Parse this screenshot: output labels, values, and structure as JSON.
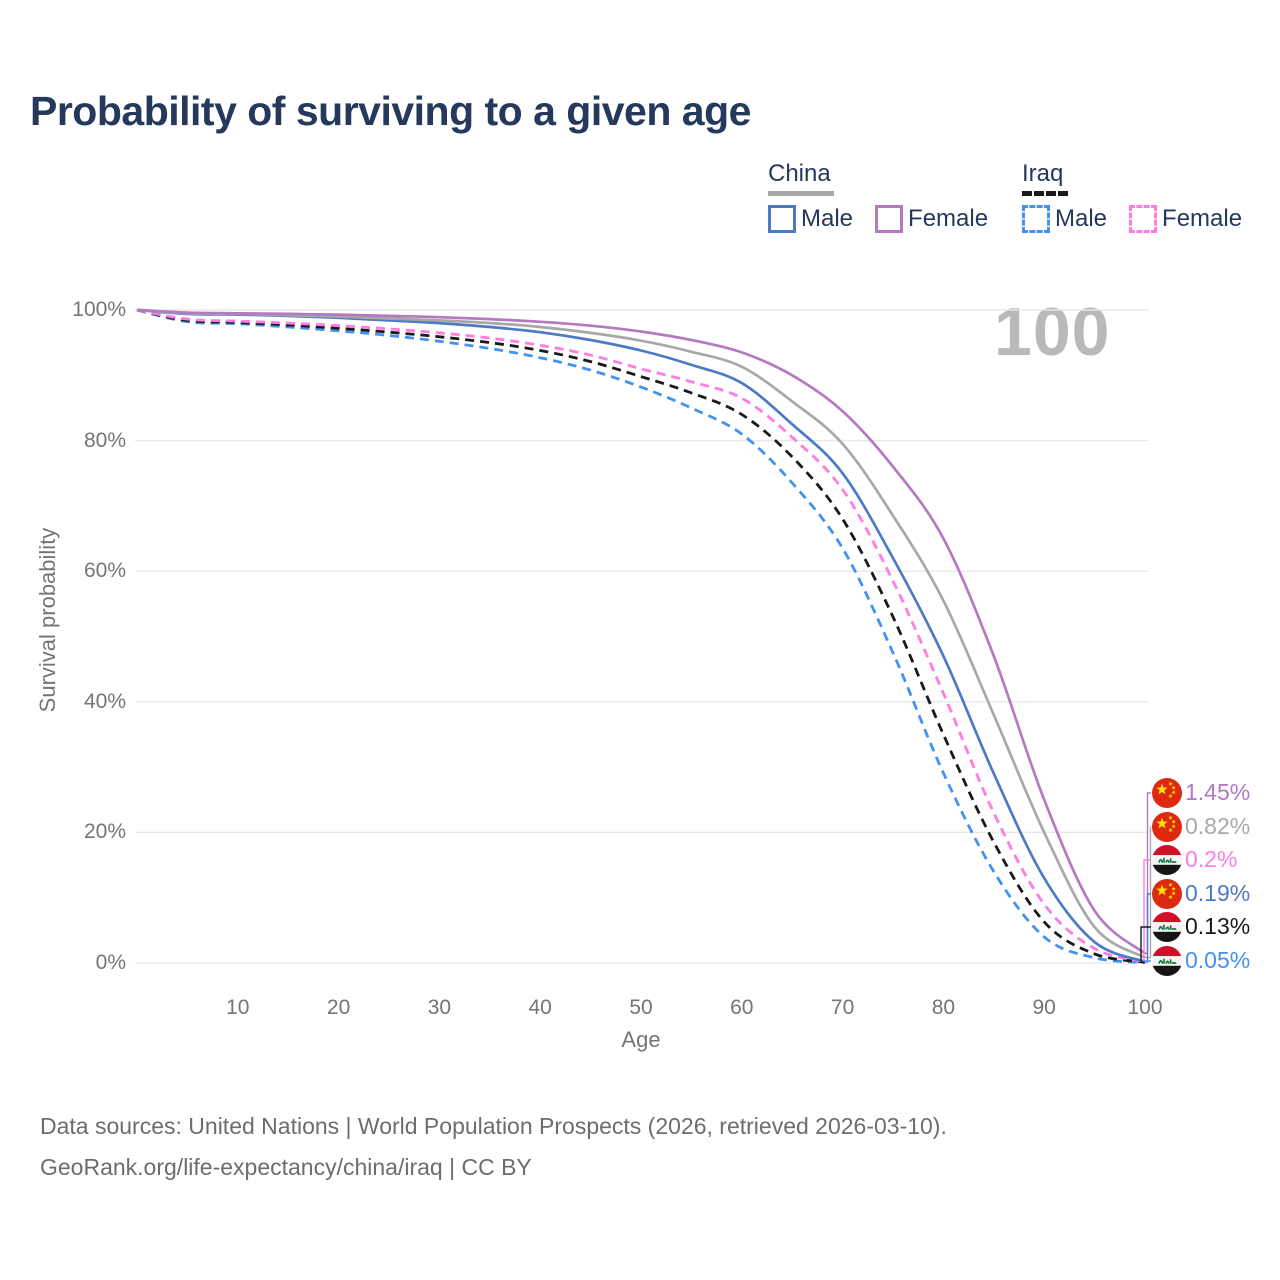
{
  "title": "Probability of surviving to a given age",
  "legend": {
    "groups": [
      {
        "label": "China",
        "line_style": "solid",
        "underline_color": "#a8a8a8",
        "items": [
          {
            "label": "Male",
            "color": "#4d7ac4",
            "dashed": false
          },
          {
            "label": "Female",
            "color": "#b579c1",
            "dashed": false
          }
        ]
      },
      {
        "label": "Iraq",
        "line_style": "dashed",
        "underline_color": "#1a1a1a",
        "items": [
          {
            "label": "Male",
            "color": "#4292f2",
            "dashed": true
          },
          {
            "label": "Female",
            "color": "#ff7ce1",
            "dashed": true
          }
        ]
      }
    ]
  },
  "chart_data": {
    "type": "line",
    "title": "Probability of surviving to a given age",
    "xlabel": "Age",
    "ylabel": "Survival probability",
    "xlim": [
      0,
      100
    ],
    "ylim": [
      0,
      100
    ],
    "grid": "horizontal-only",
    "hover_age_indicator": "100",
    "x_ticks": [
      "10",
      "20",
      "30",
      "40",
      "50",
      "60",
      "70",
      "80",
      "90",
      "100"
    ],
    "y_ticks": [
      {
        "value": 0,
        "label": "0%"
      },
      {
        "value": 20,
        "label": "20%"
      },
      {
        "value": 40,
        "label": "40%"
      },
      {
        "value": 60,
        "label": "60%"
      },
      {
        "value": 80,
        "label": "80%"
      },
      {
        "value": 100,
        "label": "100%"
      }
    ],
    "x": [
      0,
      5,
      10,
      15,
      20,
      25,
      30,
      35,
      40,
      45,
      50,
      55,
      60,
      65,
      70,
      75,
      80,
      85,
      90,
      95,
      100
    ],
    "series": [
      {
        "name": "China Female",
        "country": "China",
        "sex": "Female",
        "color": "#b579c1",
        "dashed": false,
        "values": [
          100,
          99.6,
          99.5,
          99.4,
          99.3,
          99.1,
          98.9,
          98.6,
          98.2,
          97.6,
          96.7,
          95.4,
          93.5,
          90.0,
          84.5,
          76.0,
          65.0,
          47.0,
          25.0,
          8.0,
          1.45
        ]
      },
      {
        "name": "China Both sexes",
        "country": "China",
        "sex": "Both",
        "color": "#a8a8a8",
        "dashed": false,
        "values": [
          100,
          99.5,
          99.4,
          99.2,
          99.0,
          98.7,
          98.4,
          98.0,
          97.4,
          96.5,
          95.3,
          93.6,
          91.3,
          86.0,
          79.5,
          68.5,
          55.5,
          38.0,
          20.0,
          5.5,
          0.82
        ]
      },
      {
        "name": "China Male",
        "country": "China",
        "sex": "Male",
        "color": "#4d7ac4",
        "dashed": false,
        "values": [
          100,
          99.4,
          99.3,
          99.1,
          98.8,
          98.4,
          98.0,
          97.4,
          96.6,
          95.4,
          93.8,
          91.6,
          88.8,
          82.5,
          75.0,
          62.0,
          47.0,
          29.0,
          13.0,
          3.2,
          0.19
        ]
      },
      {
        "name": "Iraq Female",
        "country": "Iraq",
        "sex": "Female",
        "color": "#ff7ce1",
        "dashed": true,
        "values": [
          100,
          98.6,
          98.3,
          98.0,
          97.6,
          97.1,
          96.5,
          95.7,
          94.6,
          93.1,
          91.0,
          89.0,
          86.5,
          80.5,
          72.5,
          58.5,
          41.3,
          23.0,
          9.0,
          2.2,
          0.2
        ]
      },
      {
        "name": "Iraq Both sexes",
        "country": "Iraq",
        "sex": "Both",
        "color": "#1a1a1a",
        "dashed": true,
        "values": [
          100,
          98.4,
          98.1,
          97.7,
          97.2,
          96.6,
          95.9,
          95.0,
          93.8,
          92.1,
          89.8,
          87.3,
          84.0,
          77.5,
          68.0,
          53.0,
          35.0,
          18.5,
          6.3,
          1.4,
          0.13
        ]
      },
      {
        "name": "Iraq Male",
        "country": "Iraq",
        "sex": "Male",
        "color": "#4292f2",
        "dashed": true,
        "values": [
          100,
          98.2,
          97.9,
          97.4,
          96.8,
          96.1,
          95.2,
          94.1,
          92.7,
          90.8,
          88.2,
          85.0,
          81.0,
          73.5,
          63.5,
          47.5,
          29.1,
          14.0,
          4.0,
          0.8,
          0.05
        ]
      }
    ],
    "end_labels": [
      {
        "flag": "china",
        "series": "China Female",
        "label": "1.45%",
        "color": "#b579c1",
        "end_value": 1.45
      },
      {
        "flag": "china",
        "series": "China Both sexes",
        "label": "0.82%",
        "color": "#a8a8a8",
        "end_value": 0.82
      },
      {
        "flag": "iraq",
        "series": "Iraq Female",
        "label": "0.2%",
        "color": "#ff7ce1",
        "end_value": 0.2
      },
      {
        "flag": "china",
        "series": "China Male",
        "label": "0.19%",
        "color": "#4d7ac4",
        "end_value": 0.19
      },
      {
        "flag": "iraq",
        "series": "Iraq Both sexes",
        "label": "0.13%",
        "color": "#1a1a1a",
        "end_value": 0.13
      },
      {
        "flag": "iraq",
        "series": "Iraq Male",
        "label": "0.05%",
        "color": "#4292f2",
        "end_value": 0.05
      }
    ]
  },
  "colors": {
    "title_text": "#24395b",
    "tick_text": "#757575",
    "gridline": "#e8e8e8",
    "watermark": "#b9b9b9",
    "footer_text": "#6d6d6d",
    "china_flag_red": "#de2910",
    "china_flag_yellow": "#ffde00",
    "iraq_flag_red": "#ce1126",
    "iraq_flag_green": "#0a7a3c"
  },
  "footer": {
    "line1": "Data sources: United Nations | World Population Prospects (2026, retrieved 2026-03-10).",
    "line2": "GeoRank.org/life-expectancy/china/iraq | CC BY"
  }
}
